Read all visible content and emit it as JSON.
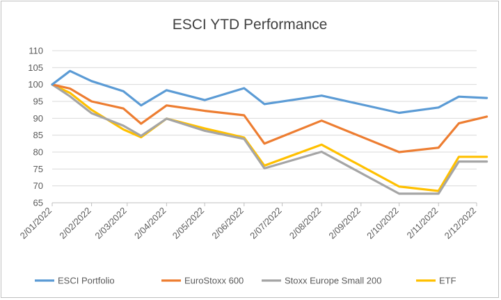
{
  "chart_data": {
    "type": "line",
    "title": "ESCI YTD Performance",
    "xlabel": "",
    "ylabel": "",
    "ylim": [
      65,
      110
    ],
    "yticks": [
      65,
      70,
      75,
      80,
      85,
      90,
      95,
      100,
      105,
      110
    ],
    "grid": true,
    "legend_position": "bottom",
    "x": [
      "2/01/2022",
      "2/02/2022",
      "2/03/2022",
      "2/04/2022",
      "2/05/2022",
      "2/06/2022",
      "2/07/2022",
      "2/08/2022",
      "2/09/2022",
      "2/10/2022",
      "2/11/2022",
      "2/12/2022"
    ],
    "x_days": [
      0,
      31,
      59,
      90,
      120,
      151,
      181,
      212,
      243,
      273,
      304,
      334
    ],
    "series": [
      {
        "name": "ESCI Portfolio",
        "color": "#5b9bd5",
        "points": [
          [
            0,
            100
          ],
          [
            14,
            104
          ],
          [
            31,
            101
          ],
          [
            56,
            98
          ],
          [
            70,
            93.8
          ],
          [
            90,
            98.3
          ],
          [
            120,
            95.4
          ],
          [
            151,
            98.9
          ],
          [
            167,
            94.2
          ],
          [
            212,
            96.7
          ],
          [
            273,
            91.6
          ],
          [
            304,
            93.2
          ],
          [
            320,
            96.4
          ],
          [
            342,
            96
          ]
        ]
      },
      {
        "name": "EuroStoxx 600",
        "color": "#ed7d31",
        "points": [
          [
            0,
            100
          ],
          [
            14,
            98.8
          ],
          [
            31,
            95
          ],
          [
            56,
            92.9
          ],
          [
            70,
            88.4
          ],
          [
            90,
            93.8
          ],
          [
            120,
            92.2
          ],
          [
            151,
            90.9
          ],
          [
            167,
            82.5
          ],
          [
            212,
            89.3
          ],
          [
            273,
            80
          ],
          [
            304,
            81.3
          ],
          [
            320,
            88.5
          ],
          [
            342,
            90.5
          ]
        ]
      },
      {
        "name": "Stoxx Europe Small 200",
        "color": "#a5a5a5",
        "points": [
          [
            0,
            100
          ],
          [
            14,
            96.5
          ],
          [
            31,
            91.5
          ],
          [
            56,
            87.8
          ],
          [
            70,
            84.8
          ],
          [
            90,
            89.9
          ],
          [
            120,
            86.3
          ],
          [
            151,
            83.9
          ],
          [
            167,
            75.2
          ],
          [
            212,
            80.1
          ],
          [
            273,
            67.7
          ],
          [
            304,
            67.7
          ],
          [
            320,
            77.2
          ],
          [
            342,
            77.2
          ]
        ]
      },
      {
        "name": "ETF",
        "color": "#ffc000",
        "points": [
          [
            0,
            100
          ],
          [
            14,
            97.5
          ],
          [
            31,
            92.5
          ],
          [
            56,
            86.7
          ],
          [
            70,
            84.4
          ],
          [
            90,
            89.9
          ],
          [
            120,
            87
          ],
          [
            151,
            84.3
          ],
          [
            167,
            76
          ],
          [
            212,
            82.2
          ],
          [
            273,
            69.8
          ],
          [
            304,
            68.5
          ],
          [
            320,
            78.6
          ],
          [
            342,
            78.6
          ]
        ]
      }
    ]
  }
}
